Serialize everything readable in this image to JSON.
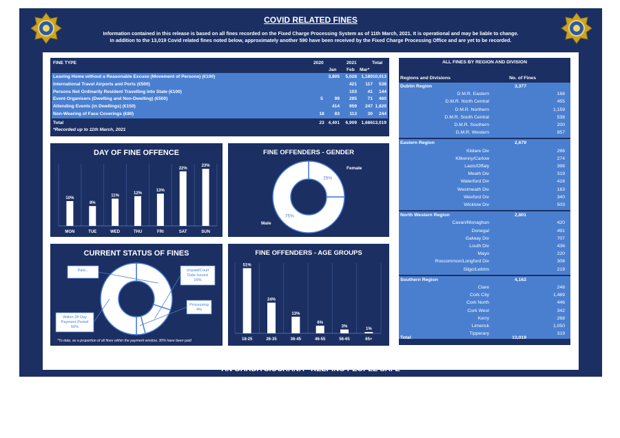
{
  "header": {
    "title": "COVID RELATED FINES",
    "info_line1": "Information contained in this release is based on all fines recorded on the Fixed Charge Processing System as of 11th March, 2021.  It is operational and may be liable to change.",
    "info_line2": "In addition to the 13,019 Covid related fines noted below, approximately another 590 have been received by the Fixed Charge Processing Office and are yet to be recorded."
  },
  "footer": {
    "text": "AN GARDA SÍOCHÁNA - KEEPING PEOPLE SAFE"
  },
  "colors": {
    "navy": "#1b2f63",
    "blue": "#4a7fd0",
    "white": "#ffffff",
    "gold": "#c9a227"
  },
  "fines_table": {
    "headers": {
      "type": "FINE TYPE",
      "y2020": "2020",
      "y2021": "2021",
      "total": "Total",
      "jan": "Jan",
      "feb": "Feb",
      "mar": "Mar*"
    },
    "rows": [
      {
        "type": "Leaving Home without a Reasonable Excuse (Movement of Persons) (€100)",
        "y2020": "",
        "jan": "3,805",
        "feb": "5,028",
        "mar": "1,180",
        "total": "10,013"
      },
      {
        "type": "International Travel Airports and Ports (€500)",
        "y2020": "",
        "jan": "",
        "feb": "421",
        "mar": "117",
        "total": "538"
      },
      {
        "type": "Persons Not Ordinarily Resident Travelling into State (€100)",
        "y2020": "",
        "jan": "",
        "feb": "103",
        "mar": "41",
        "total": "144"
      },
      {
        "type": "Event Organisers (Dwelling and Non-Dwelling) (€500)",
        "y2020": "5",
        "jan": "99",
        "feb": "285",
        "mar": "71",
        "total": "460"
      },
      {
        "type": "Attending Events (in Dwellings) (€150)",
        "y2020": "",
        "jan": "414",
        "feb": "959",
        "mar": "247",
        "total": "1,620"
      },
      {
        "type": "Non-Wearing of Face Coverings (€80)",
        "y2020": "18",
        "jan": "83",
        "feb": "113",
        "mar": "30",
        "total": "244"
      }
    ],
    "total_row": {
      "type": "Total",
      "y2020": "23",
      "jan": "4,401",
      "feb": "6,909",
      "mar": "1,686",
      "total": "13,019"
    },
    "footnote": "*Recorded up to 11th March, 2021"
  },
  "regions_table": {
    "title": "ALL FINES BY REGION AND DIVISION",
    "col_region": "Regions and Divisions",
    "col_count": "No. of Fines",
    "regions": [
      {
        "name": "Dublin Region",
        "total": "3,377",
        "divisions": [
          {
            "name": "D.M.R. Eastern",
            "value": "168"
          },
          {
            "name": "D.M.R. North Central",
            "value": "455"
          },
          {
            "name": "D.M.R. Northern",
            "value": "1,159"
          },
          {
            "name": "D.M.R. South Central",
            "value": "538"
          },
          {
            "name": "D.M.R. Southern",
            "value": "200"
          },
          {
            "name": "D.M.R. Western",
            "value": "857"
          }
        ]
      },
      {
        "name": "Eastern Region",
        "total": "2,679",
        "divisions": [
          {
            "name": "Kildare Div",
            "value": "266"
          },
          {
            "name": "Kilkenny/Carlow",
            "value": "274"
          },
          {
            "name": "Laois/Offaly",
            "value": "398"
          },
          {
            "name": "Meath Div",
            "value": "319"
          },
          {
            "name": "Waterford Div",
            "value": "416"
          },
          {
            "name": "Westmeath Div",
            "value": "163"
          },
          {
            "name": "Wexford Div",
            "value": "340"
          },
          {
            "name": "Wicklow Div",
            "value": "503"
          }
        ]
      },
      {
        "name": "North Western Region",
        "total": "2,801",
        "divisions": [
          {
            "name": "Cavan/Monaghan",
            "value": "420"
          },
          {
            "name": "Donegal",
            "value": "491"
          },
          {
            "name": "Galway Div",
            "value": "707"
          },
          {
            "name": "Louth Div",
            "value": "436"
          },
          {
            "name": "Mayo",
            "value": "220"
          },
          {
            "name": "Roscommon/Longford Div",
            "value": "308"
          },
          {
            "name": "Sligo/Leitrim",
            "value": "219"
          }
        ]
      },
      {
        "name": "Southern Region",
        "total": "4,162",
        "divisions": [
          {
            "name": "Clare",
            "value": "248"
          },
          {
            "name": "Cork City",
            "value": "1,489"
          },
          {
            "name": "Cork North",
            "value": "446"
          },
          {
            "name": "Cork West",
            "value": "342"
          },
          {
            "name": "Kerry",
            "value": "268"
          },
          {
            "name": "Limerick",
            "value": "1,050"
          },
          {
            "name": "Tipperary",
            "value": "319"
          }
        ]
      }
    ],
    "grand_total_label": "Total",
    "grand_total": "13,019"
  },
  "chart_data": [
    {
      "type": "bar",
      "title": "DAY OF FINE OFFENCE",
      "categories": [
        "MON",
        "TUE",
        "WED",
        "THU",
        "FRI",
        "SAT",
        "SUN"
      ],
      "values": [
        10,
        8,
        11,
        12,
        13,
        22,
        23
      ],
      "labels": [
        "10%",
        "8%",
        "11%",
        "12%",
        "13%",
        "22%",
        "23%"
      ],
      "ylim": [
        0,
        25
      ]
    },
    {
      "type": "pie",
      "title": "FINE OFFENDERS - GENDER",
      "categories": [
        "Female",
        "Male"
      ],
      "values": [
        25,
        75
      ],
      "labels": [
        "25%",
        "75%"
      ]
    },
    {
      "type": "pie",
      "title": "CURRENT STATUS OF FINES",
      "categories": [
        "Paid...",
        "Unpaid/Court Date Issued",
        "Processing",
        "Within 28 Day Payment Period"
      ],
      "values": [
        30,
        16,
        4,
        50
      ],
      "labels": [
        "Paid...",
        "Unpaid/Court Date Issued 16%",
        "Processing 4%",
        "Within 28 Day Payment Period 50%"
      ],
      "footnote": "*To date, as a proportion of all fines within the payment window, 30% have been paid"
    },
    {
      "type": "bar",
      "title": "FINE OFFENDERS - AGE GROUPS",
      "categories": [
        "18-25",
        "26-35",
        "36-45",
        "46-55",
        "56-65",
        "65+"
      ],
      "values": [
        51,
        24,
        13,
        6,
        3,
        1
      ],
      "labels": [
        "51%",
        "24%",
        "13%",
        "6%",
        "3%",
        "1%"
      ],
      "ylim": [
        0,
        55
      ]
    }
  ]
}
